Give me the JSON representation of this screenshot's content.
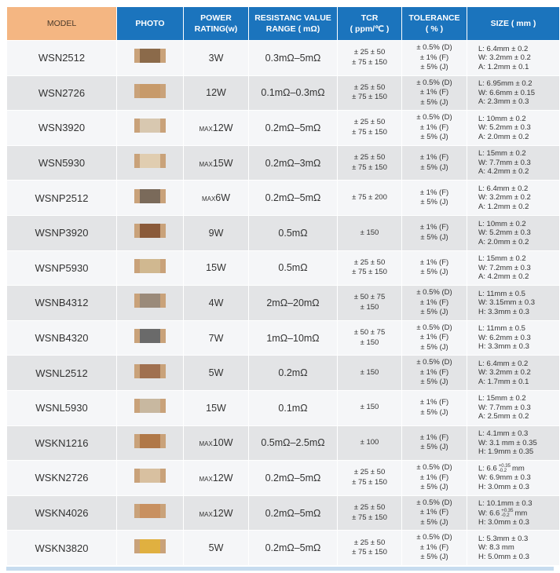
{
  "table": {
    "header": [
      [
        "MODEL"
      ],
      [
        "PHOTO"
      ],
      [
        "POWER",
        "RATING(w)"
      ],
      [
        "RESISTANC VALUE",
        "RANGE ( mΩ)"
      ],
      [
        "TCR",
        "( ppm/℃ )"
      ],
      [
        "TOLERANCE",
        "( % )"
      ],
      [
        "SIZE ( mm )"
      ]
    ],
    "rows": [
      {
        "model": "WSN2512",
        "power": "3W",
        "range": "0.3mΩ–5mΩ",
        "tcr": [
          "± 25  ± 50",
          "± 75  ± 150"
        ],
        "tolerance": [
          "± 0.5% (D)",
          "± 1% (F)",
          "± 5% (J)"
        ],
        "size": [
          "L: 6.4mm ± 0.2",
          "W: 3.2mm ± 0.2",
          "A: 1.2mm ± 0.1"
        ]
      },
      {
        "model": "WSN2726",
        "power": "12W",
        "range": "0.1mΩ–0.3mΩ",
        "tcr": [
          "± 25  ± 50",
          "± 75  ± 150"
        ],
        "tolerance": [
          "± 0.5% (D)",
          "± 1% (F)",
          "± 5% (J)"
        ],
        "size": [
          "L: 6.95mm ± 0.2",
          "W: 6.6mm ± 0.15",
          "A: 2.3mm ± 0.3"
        ]
      },
      {
        "model": "WSN3920",
        "power": {
          "prefix": "MAX",
          "value": "12W"
        },
        "range": "0.2mΩ–5mΩ",
        "tcr": [
          "± 25  ± 50",
          "± 75  ± 150"
        ],
        "tolerance": [
          "± 0.5% (D)",
          "± 1% (F)",
          "± 5% (J)"
        ],
        "size": [
          "L: 10mm ± 0.2",
          "W: 5.2mm ± 0.3",
          "A: 2.0mm ± 0.2"
        ]
      },
      {
        "model": "WSN5930",
        "power": {
          "prefix": "MAX",
          "value": "15W"
        },
        "range": "0.2mΩ–3mΩ",
        "tcr": [
          "± 25  ± 50",
          "± 75  ± 150"
        ],
        "tolerance": [
          "± 1% (F)",
          "± 5% (J)"
        ],
        "size": [
          "L: 15mm ± 0.2",
          "W: 7.7mm ± 0.3",
          "A: 4.2mm ± 0.2"
        ]
      },
      {
        "model": "WSNP2512",
        "power": {
          "prefix": "MAX",
          "value": "6W"
        },
        "range": "0.2mΩ–5mΩ",
        "tcr": [
          "± 75  ± 200"
        ],
        "tolerance": [
          "± 1% (F)",
          "± 5% (J)"
        ],
        "size": [
          "L: 6.4mm ± 0.2",
          "W: 3.2mm ± 0.2",
          "A: 1.2mm ± 0.2"
        ]
      },
      {
        "model": "WSNP3920",
        "power": "9W",
        "range": "0.5mΩ",
        "tcr": [
          "± 150"
        ],
        "tolerance": [
          "± 1% (F)",
          "± 5% (J)"
        ],
        "size": [
          "L: 10mm ± 0.2",
          "W: 5.2mm ± 0.3",
          "A: 2.0mm ± 0.2"
        ]
      },
      {
        "model": "WSNP5930",
        "power": "15W",
        "range": "0.5mΩ",
        "tcr": [
          "± 25  ± 50",
          "± 75  ± 150"
        ],
        "tolerance": [
          "± 1% (F)",
          "± 5% (J)"
        ],
        "size": [
          "L: 15mm ± 0.2",
          "W: 7.2mm ± 0.3",
          "A: 4.2mm ± 0.2"
        ]
      },
      {
        "model": "WSNB4312",
        "power": "4W",
        "range": "2mΩ–20mΩ",
        "tcr": [
          "± 50  ± 75",
          "± 150"
        ],
        "tolerance": [
          "± 0.5% (D)",
          "± 1% (F)",
          "± 5% (J)"
        ],
        "size": [
          "L: 11mm ± 0.5",
          "W: 3.15mm ± 0.3",
          "H: 3.3mm ± 0.3"
        ]
      },
      {
        "model": "WSNB4320",
        "power": "7W",
        "range": "1mΩ–10mΩ",
        "tcr": [
          "± 50  ± 75",
          "± 150"
        ],
        "tolerance": [
          "± 0.5% (D)",
          "± 1% (F)",
          "± 5% (J)"
        ],
        "size": [
          "L: 11mm ± 0.5",
          "W: 6.2mm ± 0.3",
          "H: 3.3mm ± 0.3"
        ]
      },
      {
        "model": "WSNL2512",
        "power": "5W",
        "range": "0.2mΩ",
        "tcr": [
          "± 150"
        ],
        "tolerance": [
          "± 0.5% (D)",
          "± 1% (F)",
          "± 5% (J)"
        ],
        "size": [
          "L: 6.4mm ± 0.2",
          "W: 3.2mm ± 0.2",
          "A: 1.7mm ± 0.1"
        ]
      },
      {
        "model": "WSNL5930",
        "power": "15W",
        "range": "0.1mΩ",
        "tcr": [
          "± 150"
        ],
        "tolerance": [
          "± 1% (F)",
          "± 5% (J)"
        ],
        "size": [
          "L: 15mm ± 0.2",
          "W: 7.7mm ± 0.3",
          "A: 2.5mm ± 0.2"
        ]
      },
      {
        "model": "WSKN1216",
        "power": {
          "prefix": "MAX",
          "value": "10W"
        },
        "range": "0.5mΩ–2.5mΩ",
        "tcr": [
          "± 100"
        ],
        "tolerance": [
          "± 1% (F)",
          "± 5% (J)"
        ],
        "size": [
          "L: 4.1mm ± 0.3",
          "W: 3.1 mm ± 0.35",
          "H: 1.9mm ± 0.35"
        ]
      },
      {
        "model": "WSKN2726",
        "power": {
          "prefix": "MAX",
          "value": "12W"
        },
        "range": "0.2mΩ–5mΩ",
        "tcr": [
          "± 25  ± 50",
          "± 75  ± 150"
        ],
        "tolerance": [
          "± 0.5% (D)",
          "± 1% (F)",
          "± 5% (J)"
        ],
        "size": [
          {
            "text": "L: 6.6",
            "sup": "+0.35",
            "sub": "-0.2",
            "unit": "mm"
          },
          "W: 6.9mm ± 0.3",
          "H: 3.0mm ± 0.3"
        ]
      },
      {
        "model": "WSKN4026",
        "power": {
          "prefix": "MAX",
          "value": "12W"
        },
        "range": "0.2mΩ–5mΩ",
        "tcr": [
          "± 25  ± 50",
          "± 75  ± 150"
        ],
        "tolerance": [
          "± 0.5% (D)",
          "± 1% (F)",
          "± 5% (J)"
        ],
        "size": [
          "L: 10.1mm ± 0.3",
          {
            "text": "W: 6.6",
            "sup": "+0.35",
            "sub": "-0.2",
            "unit": "mm"
          },
          "H: 3.0mm ± 0.3"
        ]
      },
      {
        "model": "WSKN3820",
        "power": "5W",
        "range": "0.2mΩ–5mΩ",
        "tcr": [
          "± 25  ± 50",
          "± 75  ± 150"
        ],
        "tolerance": [
          "± 0.5% (D)",
          "± 1% (F)",
          "± 5% (J)"
        ],
        "size": [
          "L: 5.3mm ± 0.3",
          "W:  8.3 mm",
          "H: 5.0mm ± 0.3"
        ]
      }
    ]
  }
}
